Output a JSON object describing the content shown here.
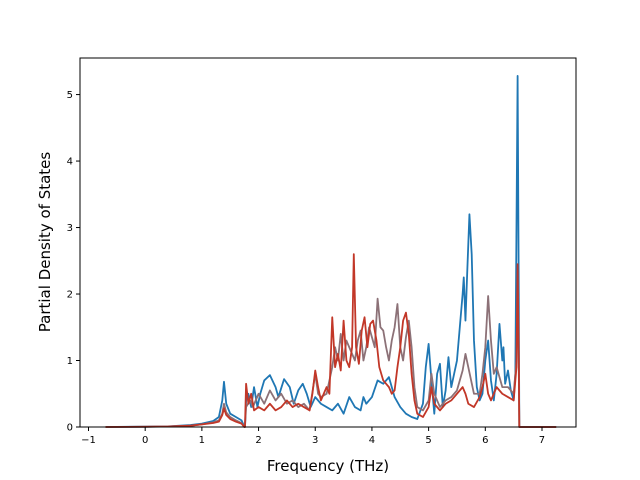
{
  "chart_data": {
    "type": "line",
    "title": "",
    "xlabel": "Frequency (THz)",
    "ylabel": "Partial Density of States",
    "xlim": [
      -1.15,
      7.6
    ],
    "ylim": [
      0,
      5.55
    ],
    "xticks": [
      -1,
      0,
      1,
      2,
      3,
      4,
      5,
      6,
      7
    ],
    "xtick_labels": [
      "−1",
      "0",
      "1",
      "2",
      "3",
      "4",
      "5",
      "6",
      "7"
    ],
    "yticks": [
      0,
      1,
      2,
      3,
      4,
      5
    ],
    "ytick_labels": [
      "0",
      "1",
      "2",
      "3",
      "4",
      "5"
    ],
    "grid": false,
    "legend": "none",
    "series": [
      {
        "color": "#1f77b4",
        "points": [
          [
            -0.7,
            0
          ],
          [
            0,
            0.005
          ],
          [
            0.4,
            0.01
          ],
          [
            0.8,
            0.03
          ],
          [
            1.0,
            0.05
          ],
          [
            1.2,
            0.09
          ],
          [
            1.3,
            0.15
          ],
          [
            1.36,
            0.4
          ],
          [
            1.39,
            0.68
          ],
          [
            1.43,
            0.35
          ],
          [
            1.5,
            0.2
          ],
          [
            1.6,
            0.15
          ],
          [
            1.7,
            0.1
          ],
          [
            1.75,
            0
          ],
          [
            1.76,
            0
          ],
          [
            1.78,
            0.4
          ],
          [
            1.82,
            0.5
          ],
          [
            1.87,
            0.3
          ],
          [
            1.92,
            0.6
          ],
          [
            1.98,
            0.3
          ],
          [
            2.03,
            0.5
          ],
          [
            2.1,
            0.7
          ],
          [
            2.2,
            0.78
          ],
          [
            2.3,
            0.6
          ],
          [
            2.35,
            0.45
          ],
          [
            2.45,
            0.72
          ],
          [
            2.55,
            0.6
          ],
          [
            2.62,
            0.35
          ],
          [
            2.7,
            0.55
          ],
          [
            2.78,
            0.65
          ],
          [
            2.85,
            0.5
          ],
          [
            2.92,
            0.3
          ],
          [
            3.0,
            0.45
          ],
          [
            3.1,
            0.35
          ],
          [
            3.2,
            0.3
          ],
          [
            3.3,
            0.25
          ],
          [
            3.4,
            0.35
          ],
          [
            3.5,
            0.2
          ],
          [
            3.6,
            0.45
          ],
          [
            3.7,
            0.3
          ],
          [
            3.8,
            0.25
          ],
          [
            3.85,
            0.45
          ],
          [
            3.9,
            0.35
          ],
          [
            4.0,
            0.45
          ],
          [
            4.1,
            0.7
          ],
          [
            4.2,
            0.65
          ],
          [
            4.3,
            0.75
          ],
          [
            4.4,
            0.45
          ],
          [
            4.5,
            0.3
          ],
          [
            4.6,
            0.2
          ],
          [
            4.7,
            0.15
          ],
          [
            4.8,
            0.12
          ],
          [
            4.9,
            0.35
          ],
          [
            4.95,
            0.9
          ],
          [
            5.0,
            1.25
          ],
          [
            5.05,
            0.7
          ],
          [
            5.1,
            0.2
          ],
          [
            5.15,
            0.8
          ],
          [
            5.2,
            0.95
          ],
          [
            5.25,
            0.3
          ],
          [
            5.3,
            0.55
          ],
          [
            5.35,
            1.05
          ],
          [
            5.4,
            0.6
          ],
          [
            5.45,
            0.8
          ],
          [
            5.5,
            1.0
          ],
          [
            5.55,
            1.5
          ],
          [
            5.6,
            2.0
          ],
          [
            5.62,
            2.25
          ],
          [
            5.65,
            1.6
          ],
          [
            5.68,
            2.3
          ],
          [
            5.72,
            3.2
          ],
          [
            5.76,
            2.6
          ],
          [
            5.8,
            1.3
          ],
          [
            5.85,
            0.6
          ],
          [
            5.9,
            0.4
          ],
          [
            5.95,
            0.5
          ],
          [
            6.0,
            1.0
          ],
          [
            6.05,
            1.3
          ],
          [
            6.1,
            0.7
          ],
          [
            6.15,
            0.4
          ],
          [
            6.2,
            0.8
          ],
          [
            6.25,
            1.55
          ],
          [
            6.3,
            1.0
          ],
          [
            6.32,
            1.2
          ],
          [
            6.35,
            0.65
          ],
          [
            6.4,
            0.85
          ],
          [
            6.45,
            0.55
          ],
          [
            6.5,
            0.4
          ],
          [
            6.53,
            0.8
          ],
          [
            6.55,
            3.0
          ],
          [
            6.57,
            5.28
          ],
          [
            6.59,
            2.0
          ],
          [
            6.6,
            0
          ],
          [
            6.8,
            0
          ],
          [
            7.25,
            0
          ]
        ]
      },
      {
        "color": "#8c7177",
        "points": [
          [
            -0.7,
            0
          ],
          [
            0,
            0.003
          ],
          [
            0.4,
            0.008
          ],
          [
            0.8,
            0.02
          ],
          [
            1.0,
            0.04
          ],
          [
            1.2,
            0.07
          ],
          [
            1.3,
            0.1
          ],
          [
            1.36,
            0.2
          ],
          [
            1.39,
            0.35
          ],
          [
            1.43,
            0.22
          ],
          [
            1.5,
            0.15
          ],
          [
            1.6,
            0.1
          ],
          [
            1.7,
            0.06
          ],
          [
            1.75,
            0
          ],
          [
            1.76,
            0
          ],
          [
            1.78,
            0.3
          ],
          [
            1.85,
            0.4
          ],
          [
            1.9,
            0.3
          ],
          [
            2.0,
            0.5
          ],
          [
            2.1,
            0.35
          ],
          [
            2.2,
            0.55
          ],
          [
            2.3,
            0.4
          ],
          [
            2.4,
            0.5
          ],
          [
            2.5,
            0.35
          ],
          [
            2.6,
            0.4
          ],
          [
            2.7,
            0.3
          ],
          [
            2.8,
            0.35
          ],
          [
            2.9,
            0.25
          ],
          [
            3.0,
            0.8
          ],
          [
            3.05,
            0.5
          ],
          [
            3.1,
            0.45
          ],
          [
            3.2,
            0.5
          ],
          [
            3.3,
            0.9
          ],
          [
            3.35,
            1.2
          ],
          [
            3.4,
            1.0
          ],
          [
            3.45,
            1.4
          ],
          [
            3.5,
            1.0
          ],
          [
            3.55,
            1.3
          ],
          [
            3.6,
            1.2
          ],
          [
            3.65,
            1.1
          ],
          [
            3.7,
            1.0
          ],
          [
            3.75,
            1.3
          ],
          [
            3.8,
            1.45
          ],
          [
            3.85,
            1.0
          ],
          [
            3.9,
            1.2
          ],
          [
            3.95,
            1.5
          ],
          [
            4.0,
            1.35
          ],
          [
            4.05,
            1.2
          ],
          [
            4.1,
            1.93
          ],
          [
            4.15,
            1.5
          ],
          [
            4.2,
            1.45
          ],
          [
            4.25,
            1.2
          ],
          [
            4.3,
            1.0
          ],
          [
            4.35,
            1.3
          ],
          [
            4.4,
            1.5
          ],
          [
            4.45,
            1.85
          ],
          [
            4.5,
            1.2
          ],
          [
            4.55,
            1.0
          ],
          [
            4.6,
            1.35
          ],
          [
            4.65,
            1.6
          ],
          [
            4.7,
            1.2
          ],
          [
            4.75,
            0.6
          ],
          [
            4.8,
            0.3
          ],
          [
            4.9,
            0.25
          ],
          [
            5.0,
            0.4
          ],
          [
            5.05,
            0.8
          ],
          [
            5.1,
            0.5
          ],
          [
            5.2,
            0.3
          ],
          [
            5.3,
            0.4
          ],
          [
            5.4,
            0.45
          ],
          [
            5.5,
            0.55
          ],
          [
            5.6,
            0.85
          ],
          [
            5.65,
            1.1
          ],
          [
            5.7,
            0.9
          ],
          [
            5.75,
            0.7
          ],
          [
            5.8,
            0.5
          ],
          [
            5.9,
            0.5
          ],
          [
            5.95,
            0.8
          ],
          [
            6.0,
            1.2
          ],
          [
            6.05,
            1.97
          ],
          [
            6.1,
            1.3
          ],
          [
            6.15,
            0.8
          ],
          [
            6.2,
            0.9
          ],
          [
            6.3,
            0.6
          ],
          [
            6.4,
            0.6
          ],
          [
            6.5,
            0.5
          ],
          [
            6.55,
            1.0
          ],
          [
            6.57,
            2.3
          ],
          [
            6.59,
            1.0
          ],
          [
            6.6,
            0
          ],
          [
            6.8,
            0
          ],
          [
            7.25,
            0
          ]
        ]
      },
      {
        "color": "#c23728",
        "points": [
          [
            -0.7,
            0
          ],
          [
            0,
            0.004
          ],
          [
            0.4,
            0.008
          ],
          [
            0.8,
            0.02
          ],
          [
            1.0,
            0.04
          ],
          [
            1.2,
            0.06
          ],
          [
            1.3,
            0.08
          ],
          [
            1.36,
            0.18
          ],
          [
            1.39,
            0.28
          ],
          [
            1.43,
            0.18
          ],
          [
            1.5,
            0.12
          ],
          [
            1.6,
            0.08
          ],
          [
            1.7,
            0.05
          ],
          [
            1.75,
            0
          ],
          [
            1.76,
            0
          ],
          [
            1.78,
            0.65
          ],
          [
            1.82,
            0.35
          ],
          [
            1.87,
            0.5
          ],
          [
            1.92,
            0.25
          ],
          [
            2.0,
            0.3
          ],
          [
            2.1,
            0.25
          ],
          [
            2.2,
            0.35
          ],
          [
            2.3,
            0.25
          ],
          [
            2.4,
            0.3
          ],
          [
            2.5,
            0.4
          ],
          [
            2.6,
            0.3
          ],
          [
            2.7,
            0.35
          ],
          [
            2.8,
            0.3
          ],
          [
            2.9,
            0.25
          ],
          [
            2.95,
            0.5
          ],
          [
            3.0,
            0.85
          ],
          [
            3.05,
            0.6
          ],
          [
            3.1,
            0.4
          ],
          [
            3.2,
            0.6
          ],
          [
            3.25,
            0.5
          ],
          [
            3.3,
            1.65
          ],
          [
            3.35,
            0.9
          ],
          [
            3.4,
            1.1
          ],
          [
            3.45,
            0.85
          ],
          [
            3.5,
            1.6
          ],
          [
            3.55,
            1.0
          ],
          [
            3.6,
            0.9
          ],
          [
            3.65,
            1.2
          ],
          [
            3.68,
            2.6
          ],
          [
            3.72,
            1.2
          ],
          [
            3.77,
            0.95
          ],
          [
            3.82,
            1.45
          ],
          [
            3.87,
            1.65
          ],
          [
            3.92,
            1.2
          ],
          [
            3.97,
            1.55
          ],
          [
            4.02,
            1.6
          ],
          [
            4.08,
            1.3
          ],
          [
            4.13,
            0.9
          ],
          [
            4.2,
            0.7
          ],
          [
            4.3,
            0.6
          ],
          [
            4.35,
            0.5
          ],
          [
            4.4,
            0.55
          ],
          [
            4.45,
            0.9
          ],
          [
            4.5,
            1.2
          ],
          [
            4.55,
            1.6
          ],
          [
            4.6,
            1.72
          ],
          [
            4.65,
            1.4
          ],
          [
            4.7,
            0.8
          ],
          [
            4.75,
            0.4
          ],
          [
            4.8,
            0.2
          ],
          [
            4.9,
            0.15
          ],
          [
            5.0,
            0.3
          ],
          [
            5.05,
            0.6
          ],
          [
            5.1,
            0.35
          ],
          [
            5.2,
            0.25
          ],
          [
            5.3,
            0.35
          ],
          [
            5.4,
            0.4
          ],
          [
            5.5,
            0.5
          ],
          [
            5.6,
            0.6
          ],
          [
            5.65,
            0.5
          ],
          [
            5.7,
            0.35
          ],
          [
            5.8,
            0.3
          ],
          [
            5.9,
            0.45
          ],
          [
            5.95,
            0.6
          ],
          [
            6.0,
            0.8
          ],
          [
            6.05,
            0.5
          ],
          [
            6.1,
            0.4
          ],
          [
            6.2,
            0.6
          ],
          [
            6.3,
            0.5
          ],
          [
            6.4,
            0.45
          ],
          [
            6.5,
            0.4
          ],
          [
            6.55,
            0.9
          ],
          [
            6.57,
            2.45
          ],
          [
            6.59,
            1.0
          ],
          [
            6.6,
            0
          ],
          [
            6.8,
            0
          ],
          [
            7.25,
            0
          ]
        ]
      }
    ]
  }
}
